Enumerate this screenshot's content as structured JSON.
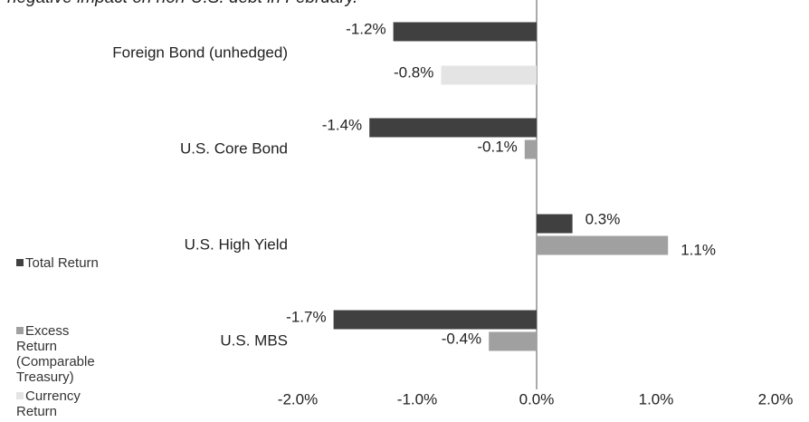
{
  "chart_data": {
    "type": "bar",
    "orientation": "horizontal",
    "title": "negative impact on non-U.S. debt in February.",
    "categories": [
      "Foreign Bond (unhedged)",
      "U.S. Core Bond",
      "U.S. High Yield",
      "U.S. MBS"
    ],
    "series": [
      {
        "name": "Total Return",
        "color": "#404040",
        "values": [
          -1.2,
          -1.4,
          0.3,
          -1.7
        ],
        "value_labels": [
          "-1.2%",
          "-1.4%",
          "0.3%",
          "-1.7%"
        ]
      },
      {
        "name": "Excess Return (Comparable Treasury)",
        "color": "#a0a0a0",
        "values": [
          null,
          -0.1,
          1.1,
          -0.4
        ],
        "value_labels": [
          null,
          "-0.1%",
          "1.1%",
          "-0.4%"
        ]
      },
      {
        "name": "Currency Return",
        "color": "#e4e4e4",
        "values": [
          -0.8,
          null,
          null,
          null
        ],
        "value_labels": [
          "-0.8%",
          null,
          null,
          null
        ]
      }
    ],
    "xlim": [
      -2,
      2
    ],
    "xticks": [
      {
        "value": -2,
        "label": "-2.0%"
      },
      {
        "value": -1,
        "label": "-1.0%"
      },
      {
        "value": 0,
        "label": "0.0%"
      },
      {
        "value": 1,
        "label": "1.0%"
      },
      {
        "value": 2,
        "label": "2.0%"
      }
    ],
    "grid": false,
    "legend": "left"
  }
}
